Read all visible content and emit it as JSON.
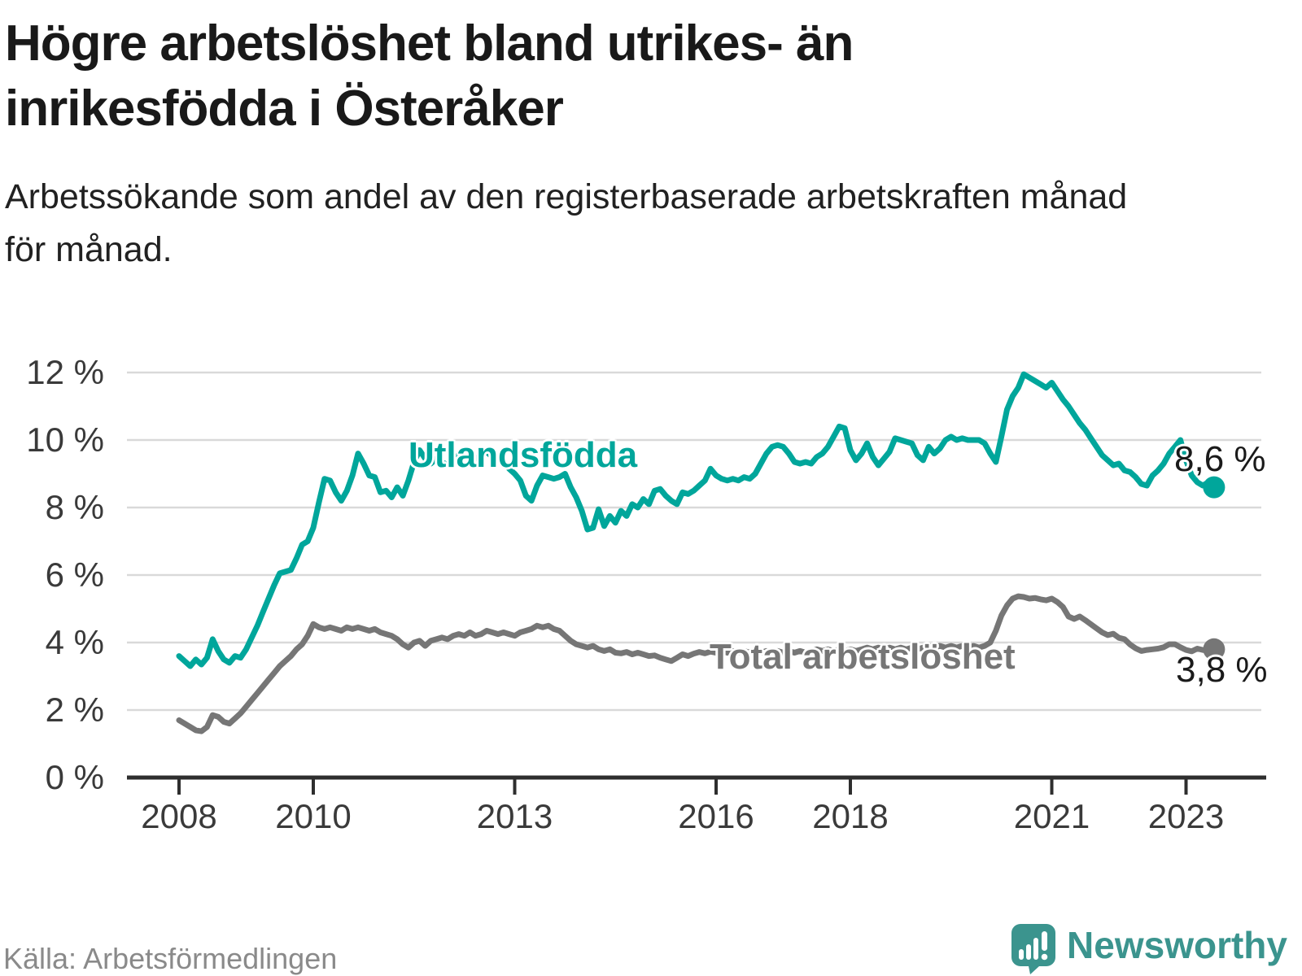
{
  "header": {
    "title_lines": [
      "Högre arbetslöshet bland utrikes- än",
      "inrikesfödda i Österåker"
    ],
    "subtitle_lines": [
      "Arbetssökande som andel av den registerbaserade arbetskraften månad",
      "för månad."
    ]
  },
  "chart_data": {
    "type": "line",
    "x_unit": "month",
    "x_start": "2008-01",
    "x_end": "2023-06",
    "ylim": [
      0,
      12
    ],
    "grid": "horizontal-only",
    "yticks": [
      {
        "label": "0 %",
        "value": 0
      },
      {
        "label": "2 %",
        "value": 2
      },
      {
        "label": "4 %",
        "value": 4
      },
      {
        "label": "6 %",
        "value": 6
      },
      {
        "label": "8 %",
        "value": 8
      },
      {
        "label": "10 %",
        "value": 10
      },
      {
        "label": "12 %",
        "value": 12
      }
    ],
    "xticks": [
      {
        "label": "2008",
        "year": 2008
      },
      {
        "label": "2010",
        "year": 2010
      },
      {
        "label": "2013",
        "year": 2013
      },
      {
        "label": "2016",
        "year": 2016
      },
      {
        "label": "2018",
        "year": 2018
      },
      {
        "label": "2021",
        "year": 2021
      },
      {
        "label": "2023",
        "year": 2023
      }
    ],
    "series": [
      {
        "name": "Utlandsfödda",
        "color": "#00a69b",
        "end_label": "8,6 %",
        "end_value": 8.6,
        "values": [
          3.6,
          3.45,
          3.3,
          3.5,
          3.35,
          3.55,
          4.1,
          3.75,
          3.5,
          3.4,
          3.6,
          3.55,
          3.8,
          4.15,
          4.5,
          4.9,
          5.3,
          5.7,
          6.05,
          6.1,
          6.15,
          6.5,
          6.9,
          7.0,
          7.4,
          8.15,
          8.85,
          8.8,
          8.45,
          8.2,
          8.5,
          8.95,
          9.6,
          9.3,
          8.95,
          8.9,
          8.45,
          8.5,
          8.3,
          8.6,
          8.35,
          8.8,
          9.35,
          9.7,
          9.45,
          9.3,
          9.45,
          9.35,
          9.25,
          9.45,
          9.6,
          9.5,
          9.6,
          9.45,
          9.55,
          9.65,
          9.5,
          9.45,
          9.35,
          9.15,
          9.0,
          8.8,
          8.35,
          8.2,
          8.65,
          8.95,
          8.9,
          8.85,
          8.9,
          9.0,
          8.6,
          8.3,
          7.9,
          7.35,
          7.4,
          7.95,
          7.45,
          7.75,
          7.55,
          7.9,
          7.75,
          8.1,
          8.0,
          8.25,
          8.1,
          8.5,
          8.55,
          8.35,
          8.2,
          8.1,
          8.45,
          8.4,
          8.5,
          8.65,
          8.8,
          9.15,
          8.95,
          8.85,
          8.8,
          8.85,
          8.8,
          8.9,
          8.85,
          9.0,
          9.3,
          9.6,
          9.8,
          9.85,
          9.8,
          9.6,
          9.35,
          9.3,
          9.35,
          9.3,
          9.5,
          9.6,
          9.8,
          10.1,
          10.4,
          10.35,
          9.7,
          9.4,
          9.6,
          9.9,
          9.5,
          9.25,
          9.45,
          9.65,
          10.05,
          10.0,
          9.95,
          9.9,
          9.55,
          9.4,
          9.8,
          9.6,
          9.75,
          10.0,
          10.1,
          10.0,
          10.05,
          10.0,
          10.0,
          10.0,
          9.9,
          9.6,
          9.35,
          10.1,
          10.9,
          11.3,
          11.55,
          11.95,
          11.85,
          11.75,
          11.65,
          11.55,
          11.7,
          11.45,
          11.2,
          11.0,
          10.75,
          10.5,
          10.3,
          10.05,
          9.8,
          9.55,
          9.4,
          9.25,
          9.3,
          9.1,
          9.05,
          8.9,
          8.7,
          8.65,
          8.95,
          9.1,
          9.3,
          9.6,
          9.8,
          10.0,
          9.4,
          8.95,
          8.75,
          8.65,
          8.75,
          8.6
        ]
      },
      {
        "name": "Total arbetslöshet",
        "color": "#767676",
        "end_label": "3,8 %",
        "end_value": 3.8,
        "values": [
          1.7,
          1.6,
          1.5,
          1.4,
          1.37,
          1.5,
          1.85,
          1.8,
          1.65,
          1.6,
          1.75,
          1.9,
          2.1,
          2.3,
          2.5,
          2.7,
          2.9,
          3.1,
          3.3,
          3.45,
          3.6,
          3.8,
          3.95,
          4.2,
          4.55,
          4.45,
          4.4,
          4.45,
          4.4,
          4.35,
          4.45,
          4.4,
          4.45,
          4.4,
          4.35,
          4.4,
          4.3,
          4.25,
          4.2,
          4.1,
          3.95,
          3.85,
          4.0,
          4.05,
          3.9,
          4.05,
          4.1,
          4.15,
          4.1,
          4.2,
          4.25,
          4.2,
          4.3,
          4.2,
          4.25,
          4.35,
          4.3,
          4.25,
          4.3,
          4.25,
          4.2,
          4.3,
          4.35,
          4.4,
          4.5,
          4.45,
          4.5,
          4.4,
          4.35,
          4.2,
          4.05,
          3.95,
          3.9,
          3.85,
          3.9,
          3.8,
          3.75,
          3.8,
          3.7,
          3.68,
          3.72,
          3.65,
          3.7,
          3.65,
          3.6,
          3.62,
          3.55,
          3.5,
          3.45,
          3.55,
          3.65,
          3.6,
          3.67,
          3.72,
          3.68,
          3.73,
          3.7,
          3.75,
          3.7,
          3.75,
          3.7,
          3.75,
          3.7,
          3.75,
          3.7,
          3.75,
          3.7,
          3.75,
          3.7,
          3.75,
          3.7,
          3.75,
          3.7,
          3.75,
          3.8,
          3.75,
          3.8,
          3.75,
          3.8,
          3.75,
          3.8,
          3.75,
          3.8,
          3.85,
          3.8,
          3.85,
          3.8,
          3.85,
          3.8,
          3.85,
          3.8,
          3.85,
          3.8,
          3.85,
          3.9,
          3.85,
          3.9,
          3.85,
          3.9,
          3.85,
          3.9,
          3.85,
          3.9,
          3.85,
          3.9,
          4.0,
          4.35,
          4.8,
          5.1,
          5.3,
          5.37,
          5.35,
          5.3,
          5.32,
          5.28,
          5.25,
          5.3,
          5.2,
          5.05,
          4.77,
          4.7,
          4.77,
          4.66,
          4.54,
          4.42,
          4.3,
          4.22,
          4.26,
          4.14,
          4.1,
          3.94,
          3.83,
          3.75,
          3.78,
          3.8,
          3.82,
          3.86,
          3.95,
          3.95,
          3.86,
          3.78,
          3.74,
          3.82,
          3.78,
          3.76,
          3.8
        ]
      }
    ]
  },
  "footer": {
    "source": "Källa: Arbetsförmedlingen",
    "brand": "Newsworthy",
    "brand_color": "#3b948e"
  }
}
